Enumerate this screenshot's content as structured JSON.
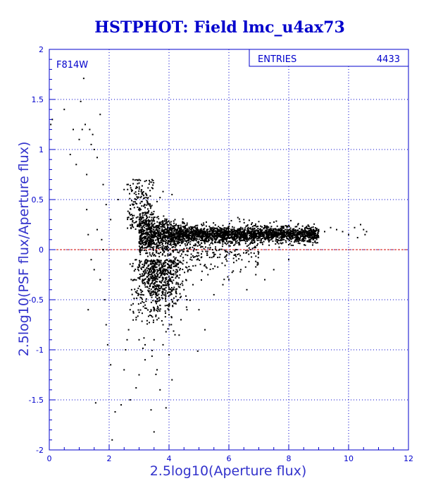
{
  "chart_data": {
    "type": "scatter",
    "title": "HSTPHOT: Field lmc_u4ax73",
    "xlabel": "2.5log10(Aperture flux)",
    "ylabel": "2.5log10(PSF flux/Aperture flux)",
    "xlim": [
      0,
      12
    ],
    "ylim": [
      -2,
      2
    ],
    "x_ticks": [
      "0",
      "2",
      "4",
      "6",
      "8",
      "10",
      "12"
    ],
    "y_ticks": [
      "-2",
      "-1.5",
      "-1",
      "-0.5",
      "0",
      "0.5",
      "1",
      "1.5",
      "2"
    ],
    "grid": true,
    "annotation": "F814W",
    "stats": {
      "label": "ENTRIES",
      "value": "4433"
    },
    "reference_line": {
      "y": 0,
      "color": "#cc0000"
    },
    "colors": {
      "axes": "#0000cc",
      "grid": "#0000cc",
      "points": "#000000",
      "text": "#0000cc"
    },
    "series": [
      {
        "points": [
          [
            0.05,
            1.25
          ],
          [
            0.1,
            1.3
          ],
          [
            0.5,
            1.4
          ],
          [
            0.7,
            0.95
          ],
          [
            0.8,
            1.2
          ],
          [
            0.9,
            0.85
          ],
          [
            1.0,
            1.1
          ],
          [
            1.05,
            1.48
          ],
          [
            1.1,
            1.2
          ],
          [
            1.15,
            1.71
          ],
          [
            1.2,
            1.25
          ],
          [
            1.25,
            0.75
          ],
          [
            1.35,
            1.2
          ],
          [
            1.4,
            1.05
          ],
          [
            1.45,
            1.15
          ],
          [
            1.5,
            1.0
          ],
          [
            1.6,
            0.92
          ],
          [
            1.7,
            1.35
          ],
          [
            1.75,
            0.1
          ],
          [
            1.8,
            0.65
          ],
          [
            1.9,
            0.45
          ],
          [
            2.05,
            0.3
          ],
          [
            1.25,
            0.4
          ],
          [
            1.3,
            0.15
          ],
          [
            1.4,
            -0.1
          ],
          [
            1.5,
            -0.2
          ],
          [
            1.6,
            0.2
          ],
          [
            1.7,
            -0.3
          ],
          [
            1.8,
            0.0
          ],
          [
            1.85,
            -0.5
          ],
          [
            1.9,
            -0.75
          ],
          [
            1.95,
            -0.95
          ],
          [
            2.05,
            -1.15
          ],
          [
            2.1,
            -1.9
          ],
          [
            1.55,
            -1.53
          ],
          [
            1.3,
            -0.6
          ],
          [
            2.2,
            -1.62
          ],
          [
            2.4,
            -1.55
          ],
          [
            2.5,
            -1.2
          ],
          [
            2.55,
            -1.0
          ],
          [
            2.7,
            -1.5
          ],
          [
            2.9,
            -1.38
          ],
          [
            3.0,
            -1.25
          ],
          [
            3.2,
            -1.1
          ],
          [
            3.4,
            -1.6
          ],
          [
            3.5,
            -1.82
          ],
          [
            3.6,
            -1.2
          ],
          [
            3.7,
            -1.4
          ],
          [
            3.9,
            -1.58
          ],
          [
            4.1,
            -1.3
          ],
          [
            4.0,
            -1.05
          ],
          [
            3.8,
            -0.95
          ],
          [
            4.2,
            -0.85
          ],
          [
            4.4,
            -0.7
          ],
          [
            5.0,
            -0.6
          ],
          [
            5.2,
            -0.8
          ],
          [
            5.5,
            -0.45
          ],
          [
            5.8,
            -0.35
          ],
          [
            6.0,
            -0.3
          ],
          [
            6.4,
            -0.2
          ],
          [
            6.6,
            -0.4
          ],
          [
            6.9,
            -0.25
          ],
          [
            7.2,
            -0.3
          ],
          [
            7.5,
            -0.2
          ],
          [
            8.0,
            -0.1
          ],
          [
            6.3,
            0.32
          ],
          [
            6.5,
            0.3
          ],
          [
            7.0,
            0.28
          ],
          [
            8.6,
            0.22
          ],
          [
            9.0,
            0.2
          ],
          [
            9.2,
            0.18
          ],
          [
            9.4,
            0.22
          ],
          [
            9.6,
            0.2
          ],
          [
            9.8,
            0.18
          ],
          [
            10.0,
            0.15
          ],
          [
            10.2,
            0.22
          ],
          [
            10.3,
            0.12
          ],
          [
            10.4,
            0.25
          ],
          [
            10.5,
            0.2
          ],
          [
            10.55,
            0.15
          ],
          [
            10.6,
            0.18
          ],
          [
            2.3,
            0.5
          ],
          [
            2.5,
            0.6
          ],
          [
            2.6,
            0.65
          ],
          [
            2.8,
            0.7
          ],
          [
            2.9,
            0.55
          ],
          [
            3.05,
            0.52
          ],
          [
            3.1,
            0.48
          ],
          [
            3.2,
            0.42
          ],
          [
            3.3,
            0.45
          ],
          [
            3.6,
            0.48
          ],
          [
            3.7,
            0.52
          ],
          [
            3.8,
            0.58
          ],
          [
            4.1,
            0.55
          ],
          [
            4.2,
            0.3
          ],
          [
            3.0,
            -0.15
          ],
          [
            3.1,
            -0.45
          ],
          [
            3.3,
            -0.3
          ],
          [
            3.4,
            -0.6
          ],
          [
            3.6,
            -0.7
          ],
          [
            3.7,
            -0.5
          ],
          [
            3.8,
            -0.75
          ],
          [
            3.9,
            -0.82
          ],
          [
            4.0,
            -0.65
          ],
          [
            4.3,
            -0.5
          ],
          [
            4.5,
            -0.4
          ],
          [
            4.6,
            -0.6
          ],
          [
            4.8,
            -0.35
          ],
          [
            5.3,
            -0.25
          ],
          [
            2.85,
            -0.3
          ],
          [
            2.75,
            -0.4
          ],
          [
            2.7,
            -0.6
          ],
          [
            2.65,
            -0.8
          ],
          [
            2.6,
            -0.9
          ],
          [
            2.9,
            -0.7
          ],
          [
            3.0,
            -0.9
          ],
          [
            3.2,
            -0.95
          ],
          [
            3.5,
            -0.9
          ]
        ]
      }
    ]
  }
}
